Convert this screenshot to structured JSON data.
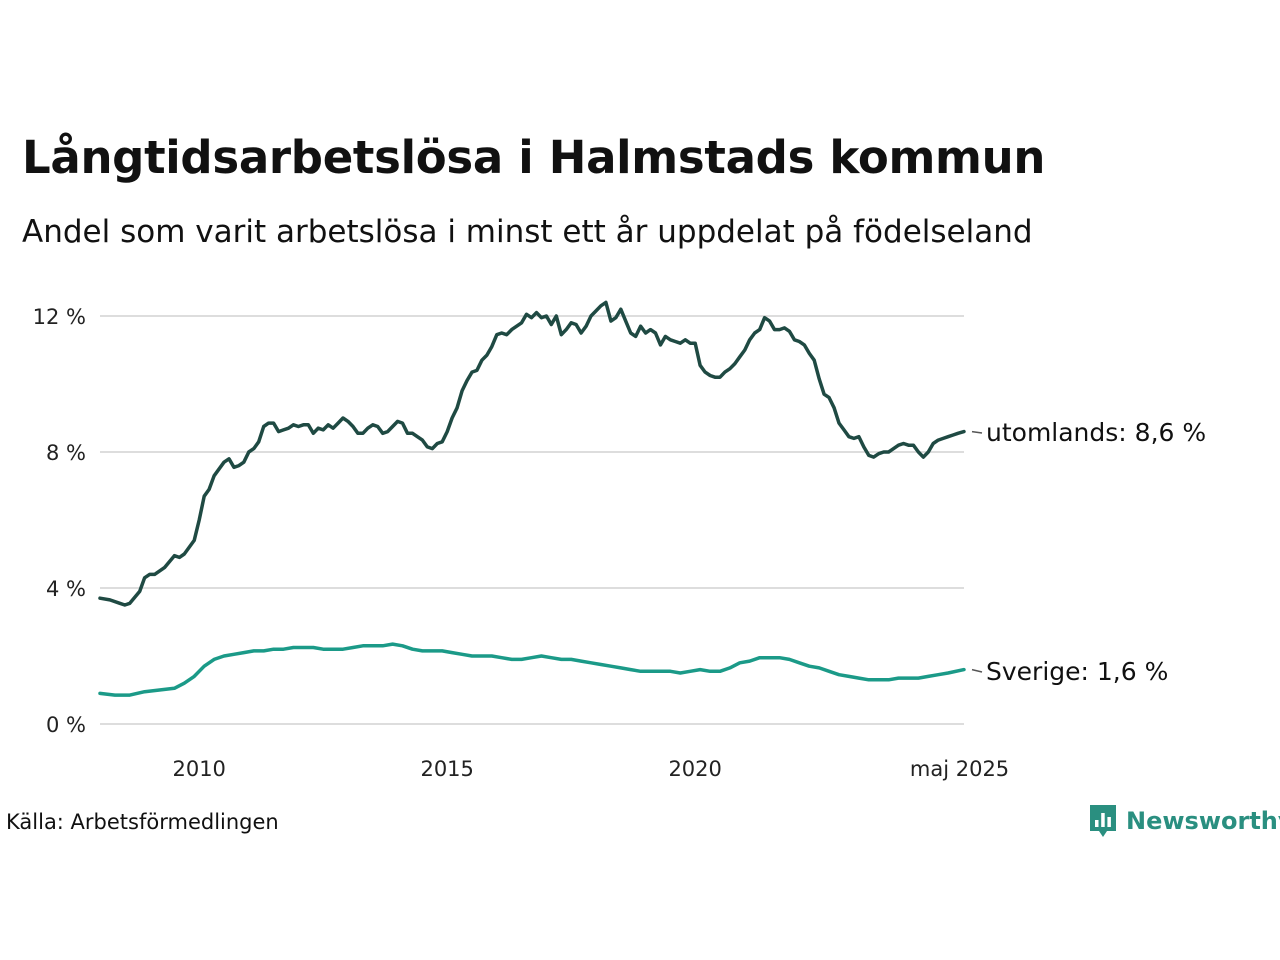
{
  "header": {
    "title": "Långtidsarbetslösa i Halmstads kommun",
    "subtitle": "Andel som varit arbetslösa i minst ett år uppdelat på födelseland"
  },
  "footer": {
    "source": "Källa: Arbetsförmedlingen",
    "brand": "Newsworthy",
    "brand_icon": "newsworthy-chart-icon"
  },
  "colors": {
    "utomlands": "#1f4a43",
    "sverige": "#1b9a88",
    "grid": "#dddddd",
    "brand": "#2a8f80"
  },
  "chart_data": {
    "type": "line",
    "title": "Långtidsarbetslösa i Halmstads kommun",
    "subtitle": "Andel som varit arbetslösa i minst ett år uppdelat på födelseland",
    "xlabel": "",
    "ylabel": "",
    "unit": "%",
    "xlim": [
      2008.0,
      2025.42
    ],
    "ylim": [
      0,
      12.5
    ],
    "grid": true,
    "x_ticks": [
      {
        "value": 2010,
        "label": "2010"
      },
      {
        "value": 2015,
        "label": "2015"
      },
      {
        "value": 2020,
        "label": "2020"
      },
      {
        "value": 2025.33,
        "label": "maj 2025"
      }
    ],
    "y_ticks": [
      {
        "value": 0,
        "label": "0 %"
      },
      {
        "value": 4,
        "label": "4 %"
      },
      {
        "value": 8,
        "label": "8 %"
      },
      {
        "value": 12,
        "label": "12 %"
      }
    ],
    "series": [
      {
        "name": "utomlands",
        "end_label": "utomlands: 8,6 %",
        "points": [
          [
            2008.0,
            3.7
          ],
          [
            2008.2,
            3.65
          ],
          [
            2008.4,
            3.55
          ],
          [
            2008.5,
            3.5
          ],
          [
            2008.6,
            3.55
          ],
          [
            2008.8,
            3.9
          ],
          [
            2008.9,
            4.3
          ],
          [
            2009.0,
            4.4
          ],
          [
            2009.1,
            4.4
          ],
          [
            2009.3,
            4.6
          ],
          [
            2009.5,
            4.95
          ],
          [
            2009.6,
            4.9
          ],
          [
            2009.7,
            5.0
          ],
          [
            2009.9,
            5.4
          ],
          [
            2010.0,
            6.0
          ],
          [
            2010.1,
            6.7
          ],
          [
            2010.2,
            6.9
          ],
          [
            2010.3,
            7.3
          ],
          [
            2010.5,
            7.7
          ],
          [
            2010.6,
            7.8
          ],
          [
            2010.7,
            7.55
          ],
          [
            2010.8,
            7.6
          ],
          [
            2010.9,
            7.7
          ],
          [
            2011.0,
            8.0
          ],
          [
            2011.1,
            8.1
          ],
          [
            2011.2,
            8.3
          ],
          [
            2011.3,
            8.75
          ],
          [
            2011.4,
            8.85
          ],
          [
            2011.5,
            8.85
          ],
          [
            2011.6,
            8.6
          ],
          [
            2011.7,
            8.65
          ],
          [
            2011.8,
            8.7
          ],
          [
            2011.9,
            8.8
          ],
          [
            2012.0,
            8.75
          ],
          [
            2012.1,
            8.8
          ],
          [
            2012.2,
            8.8
          ],
          [
            2012.3,
            8.55
          ],
          [
            2012.4,
            8.7
          ],
          [
            2012.5,
            8.65
          ],
          [
            2012.6,
            8.8
          ],
          [
            2012.7,
            8.7
          ],
          [
            2012.8,
            8.85
          ],
          [
            2012.9,
            9.0
          ],
          [
            2013.0,
            8.9
          ],
          [
            2013.1,
            8.75
          ],
          [
            2013.2,
            8.55
          ],
          [
            2013.3,
            8.55
          ],
          [
            2013.4,
            8.7
          ],
          [
            2013.5,
            8.8
          ],
          [
            2013.6,
            8.75
          ],
          [
            2013.7,
            8.55
          ],
          [
            2013.8,
            8.6
          ],
          [
            2013.9,
            8.75
          ],
          [
            2014.0,
            8.9
          ],
          [
            2014.1,
            8.85
          ],
          [
            2014.2,
            8.55
          ],
          [
            2014.3,
            8.55
          ],
          [
            2014.4,
            8.45
          ],
          [
            2014.5,
            8.35
          ],
          [
            2014.6,
            8.15
          ],
          [
            2014.7,
            8.1
          ],
          [
            2014.8,
            8.25
          ],
          [
            2014.9,
            8.3
          ],
          [
            2015.0,
            8.6
          ],
          [
            2015.1,
            9.0
          ],
          [
            2015.2,
            9.3
          ],
          [
            2015.3,
            9.8
          ],
          [
            2015.4,
            10.1
          ],
          [
            2015.5,
            10.35
          ],
          [
            2015.6,
            10.4
          ],
          [
            2015.7,
            10.7
          ],
          [
            2015.8,
            10.85
          ],
          [
            2015.9,
            11.1
          ],
          [
            2016.0,
            11.45
          ],
          [
            2016.1,
            11.5
          ],
          [
            2016.2,
            11.45
          ],
          [
            2016.3,
            11.6
          ],
          [
            2016.5,
            11.8
          ],
          [
            2016.6,
            12.05
          ],
          [
            2016.7,
            11.95
          ],
          [
            2016.8,
            12.1
          ],
          [
            2016.9,
            11.95
          ],
          [
            2017.0,
            12.0
          ],
          [
            2017.1,
            11.75
          ],
          [
            2017.2,
            12.0
          ],
          [
            2017.3,
            11.45
          ],
          [
            2017.4,
            11.6
          ],
          [
            2017.5,
            11.8
          ],
          [
            2017.6,
            11.75
          ],
          [
            2017.7,
            11.5
          ],
          [
            2017.8,
            11.7
          ],
          [
            2017.9,
            12.0
          ],
          [
            2018.0,
            12.15
          ],
          [
            2018.1,
            12.3
          ],
          [
            2018.2,
            12.4
          ],
          [
            2018.3,
            11.85
          ],
          [
            2018.4,
            11.95
          ],
          [
            2018.5,
            12.2
          ],
          [
            2018.6,
            11.85
          ],
          [
            2018.7,
            11.5
          ],
          [
            2018.8,
            11.4
          ],
          [
            2018.9,
            11.7
          ],
          [
            2019.0,
            11.5
          ],
          [
            2019.1,
            11.6
          ],
          [
            2019.2,
            11.5
          ],
          [
            2019.3,
            11.15
          ],
          [
            2019.4,
            11.4
          ],
          [
            2019.5,
            11.3
          ],
          [
            2019.6,
            11.25
          ],
          [
            2019.7,
            11.2
          ],
          [
            2019.8,
            11.3
          ],
          [
            2019.9,
            11.2
          ],
          [
            2020.0,
            11.2
          ],
          [
            2020.1,
            10.55
          ],
          [
            2020.2,
            10.35
          ],
          [
            2020.3,
            10.25
          ],
          [
            2020.4,
            10.2
          ],
          [
            2020.5,
            10.2
          ],
          [
            2020.6,
            10.35
          ],
          [
            2020.7,
            10.45
          ],
          [
            2020.8,
            10.6
          ],
          [
            2020.9,
            10.8
          ],
          [
            2021.0,
            11.0
          ],
          [
            2021.1,
            11.3
          ],
          [
            2021.2,
            11.5
          ],
          [
            2021.3,
            11.6
          ],
          [
            2021.4,
            11.95
          ],
          [
            2021.5,
            11.85
          ],
          [
            2021.6,
            11.6
          ],
          [
            2021.7,
            11.6
          ],
          [
            2021.8,
            11.65
          ],
          [
            2021.9,
            11.55
          ],
          [
            2022.0,
            11.3
          ],
          [
            2022.1,
            11.25
          ],
          [
            2022.2,
            11.15
          ],
          [
            2022.3,
            10.9
          ],
          [
            2022.4,
            10.7
          ],
          [
            2022.5,
            10.15
          ],
          [
            2022.6,
            9.7
          ],
          [
            2022.7,
            9.6
          ],
          [
            2022.8,
            9.3
          ],
          [
            2022.9,
            8.85
          ],
          [
            2023.0,
            8.65
          ],
          [
            2023.1,
            8.45
          ],
          [
            2023.2,
            8.4
          ],
          [
            2023.3,
            8.45
          ],
          [
            2023.4,
            8.15
          ],
          [
            2023.5,
            7.9
          ],
          [
            2023.6,
            7.85
          ],
          [
            2023.7,
            7.95
          ],
          [
            2023.8,
            8.0
          ],
          [
            2023.9,
            8.0
          ],
          [
            2024.0,
            8.1
          ],
          [
            2024.1,
            8.2
          ],
          [
            2024.2,
            8.25
          ],
          [
            2024.3,
            8.2
          ],
          [
            2024.4,
            8.2
          ],
          [
            2024.5,
            8.0
          ],
          [
            2024.6,
            7.85
          ],
          [
            2024.7,
            8.0
          ],
          [
            2024.8,
            8.25
          ],
          [
            2024.9,
            8.35
          ],
          [
            2025.0,
            8.4
          ],
          [
            2025.1,
            8.45
          ],
          [
            2025.2,
            8.5
          ],
          [
            2025.3,
            8.55
          ],
          [
            2025.42,
            8.6
          ]
        ]
      },
      {
        "name": "Sverige",
        "end_label": "Sverige: 1,6 %",
        "points": [
          [
            2008.0,
            0.9
          ],
          [
            2008.3,
            0.85
          ],
          [
            2008.6,
            0.85
          ],
          [
            2008.9,
            0.95
          ],
          [
            2009.2,
            1.0
          ],
          [
            2009.5,
            1.05
          ],
          [
            2009.7,
            1.2
          ],
          [
            2009.9,
            1.4
          ],
          [
            2010.1,
            1.7
          ],
          [
            2010.3,
            1.9
          ],
          [
            2010.5,
            2.0
          ],
          [
            2010.7,
            2.05
          ],
          [
            2010.9,
            2.1
          ],
          [
            2011.1,
            2.15
          ],
          [
            2011.3,
            2.15
          ],
          [
            2011.5,
            2.2
          ],
          [
            2011.7,
            2.2
          ],
          [
            2011.9,
            2.25
          ],
          [
            2012.1,
            2.25
          ],
          [
            2012.3,
            2.25
          ],
          [
            2012.5,
            2.2
          ],
          [
            2012.7,
            2.2
          ],
          [
            2012.9,
            2.2
          ],
          [
            2013.1,
            2.25
          ],
          [
            2013.3,
            2.3
          ],
          [
            2013.5,
            2.3
          ],
          [
            2013.7,
            2.3
          ],
          [
            2013.9,
            2.35
          ],
          [
            2014.1,
            2.3
          ],
          [
            2014.3,
            2.2
          ],
          [
            2014.5,
            2.15
          ],
          [
            2014.7,
            2.15
          ],
          [
            2014.9,
            2.15
          ],
          [
            2015.1,
            2.1
          ],
          [
            2015.3,
            2.05
          ],
          [
            2015.5,
            2.0
          ],
          [
            2015.7,
            2.0
          ],
          [
            2015.9,
            2.0
          ],
          [
            2016.1,
            1.95
          ],
          [
            2016.3,
            1.9
          ],
          [
            2016.5,
            1.9
          ],
          [
            2016.7,
            1.95
          ],
          [
            2016.9,
            2.0
          ],
          [
            2017.1,
            1.95
          ],
          [
            2017.3,
            1.9
          ],
          [
            2017.5,
            1.9
          ],
          [
            2017.7,
            1.85
          ],
          [
            2017.9,
            1.8
          ],
          [
            2018.1,
            1.75
          ],
          [
            2018.3,
            1.7
          ],
          [
            2018.5,
            1.65
          ],
          [
            2018.7,
            1.6
          ],
          [
            2018.9,
            1.55
          ],
          [
            2019.1,
            1.55
          ],
          [
            2019.3,
            1.55
          ],
          [
            2019.5,
            1.55
          ],
          [
            2019.7,
            1.5
          ],
          [
            2019.9,
            1.55
          ],
          [
            2020.1,
            1.6
          ],
          [
            2020.3,
            1.55
          ],
          [
            2020.5,
            1.55
          ],
          [
            2020.7,
            1.65
          ],
          [
            2020.9,
            1.8
          ],
          [
            2021.1,
            1.85
          ],
          [
            2021.3,
            1.95
          ],
          [
            2021.5,
            1.95
          ],
          [
            2021.7,
            1.95
          ],
          [
            2021.9,
            1.9
          ],
          [
            2022.1,
            1.8
          ],
          [
            2022.3,
            1.7
          ],
          [
            2022.5,
            1.65
          ],
          [
            2022.7,
            1.55
          ],
          [
            2022.9,
            1.45
          ],
          [
            2023.1,
            1.4
          ],
          [
            2023.3,
            1.35
          ],
          [
            2023.5,
            1.3
          ],
          [
            2023.7,
            1.3
          ],
          [
            2023.9,
            1.3
          ],
          [
            2024.1,
            1.35
          ],
          [
            2024.3,
            1.35
          ],
          [
            2024.5,
            1.35
          ],
          [
            2024.7,
            1.4
          ],
          [
            2024.9,
            1.45
          ],
          [
            2025.1,
            1.5
          ],
          [
            2025.42,
            1.6
          ]
        ]
      }
    ]
  }
}
